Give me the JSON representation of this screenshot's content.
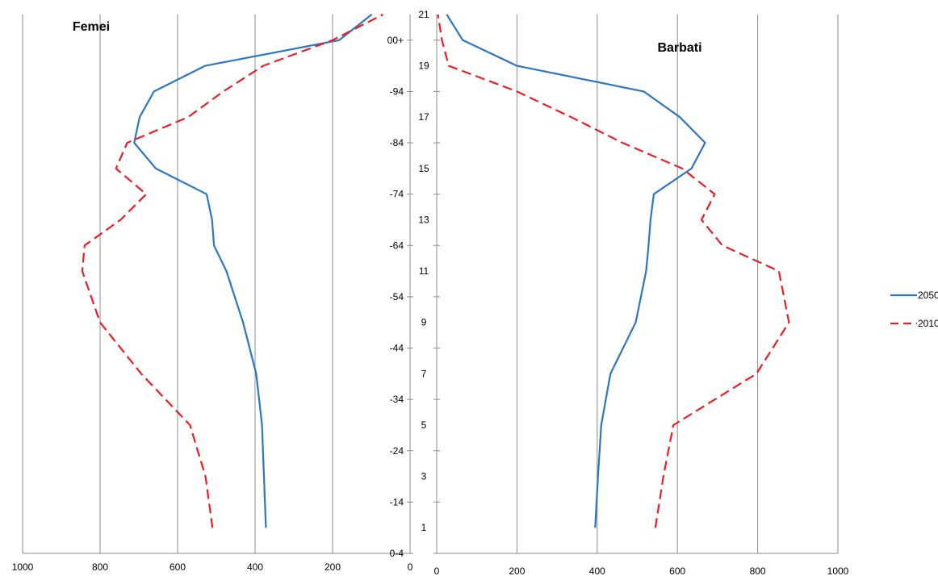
{
  "chart_data": {
    "type": "line",
    "grid": true,
    "legend_position": "right",
    "panels": [
      {
        "id": "left",
        "title": "Femei",
        "x_reversed": true,
        "xlim": [
          0,
          1000
        ],
        "x_ticks": [
          "1000",
          "800",
          "600",
          "400",
          "200",
          "0"
        ],
        "y_ticks": [
          "0-4",
          "-14",
          "-24",
          "-34",
          "-44",
          "-54",
          "-64",
          "-74",
          "-84",
          "-94",
          "00+"
        ],
        "series": [
          {
            "name": "2050",
            "y": [
              1,
              3,
              5,
              7,
              9,
              11,
              12,
              13,
              14,
              15,
              16,
              17,
              18,
              19,
              20,
              21
            ],
            "x": [
              372,
              377,
              382,
              397,
              431,
              474,
              506,
              511,
              525,
              656,
              712,
              698,
              661,
              529,
              183,
              99
            ]
          },
          {
            "name": "2010",
            "y": [
              1,
              3,
              5,
              7,
              9,
              11,
              12,
              13,
              14,
              15,
              16,
              17,
              18,
              19,
              20,
              21
            ],
            "x": [
              510,
              528,
              568,
              694,
              800,
              846,
              840,
              747,
              681,
              759,
              730,
              573,
              482,
              379,
              200,
              70
            ]
          }
        ]
      },
      {
        "id": "right",
        "title": "Barbati",
        "x_reversed": false,
        "xlim": [
          0,
          1000
        ],
        "x_ticks": [
          "0",
          "200",
          "400",
          "600",
          "800",
          "1000"
        ],
        "y_ticks": [
          "1",
          "3",
          "5",
          "7",
          "9",
          "11",
          "13",
          "15",
          "17",
          "19",
          "21"
        ],
        "series": [
          {
            "name": "2050",
            "y": [
              1,
              3,
              5,
              7,
              9,
              11,
              12,
              13,
              14,
              15,
              16,
              17,
              18,
              19,
              20,
              21
            ],
            "x": [
              395,
              402,
              410,
              433,
              496,
              522,
              528,
              533,
              541,
              635,
              669,
              606,
              516,
              200,
              65,
              25
            ]
          },
          {
            "name": "2010",
            "y": [
              1,
              3,
              5,
              7,
              9,
              11,
              12,
              13,
              14,
              15,
              16,
              17,
              18,
              19,
              20,
              21
            ],
            "x": [
              545,
              565,
              590,
              797,
              878,
              853,
              712,
              660,
              693,
              612,
              463,
              335,
              200,
              30,
              13,
              3
            ]
          }
        ]
      }
    ],
    "legend": [
      {
        "label": "2050",
        "color": "#2e75c2",
        "dash": "solid"
      },
      {
        "label": "2010",
        "color": "#ee1c25",
        "dash": "dashed"
      }
    ]
  }
}
